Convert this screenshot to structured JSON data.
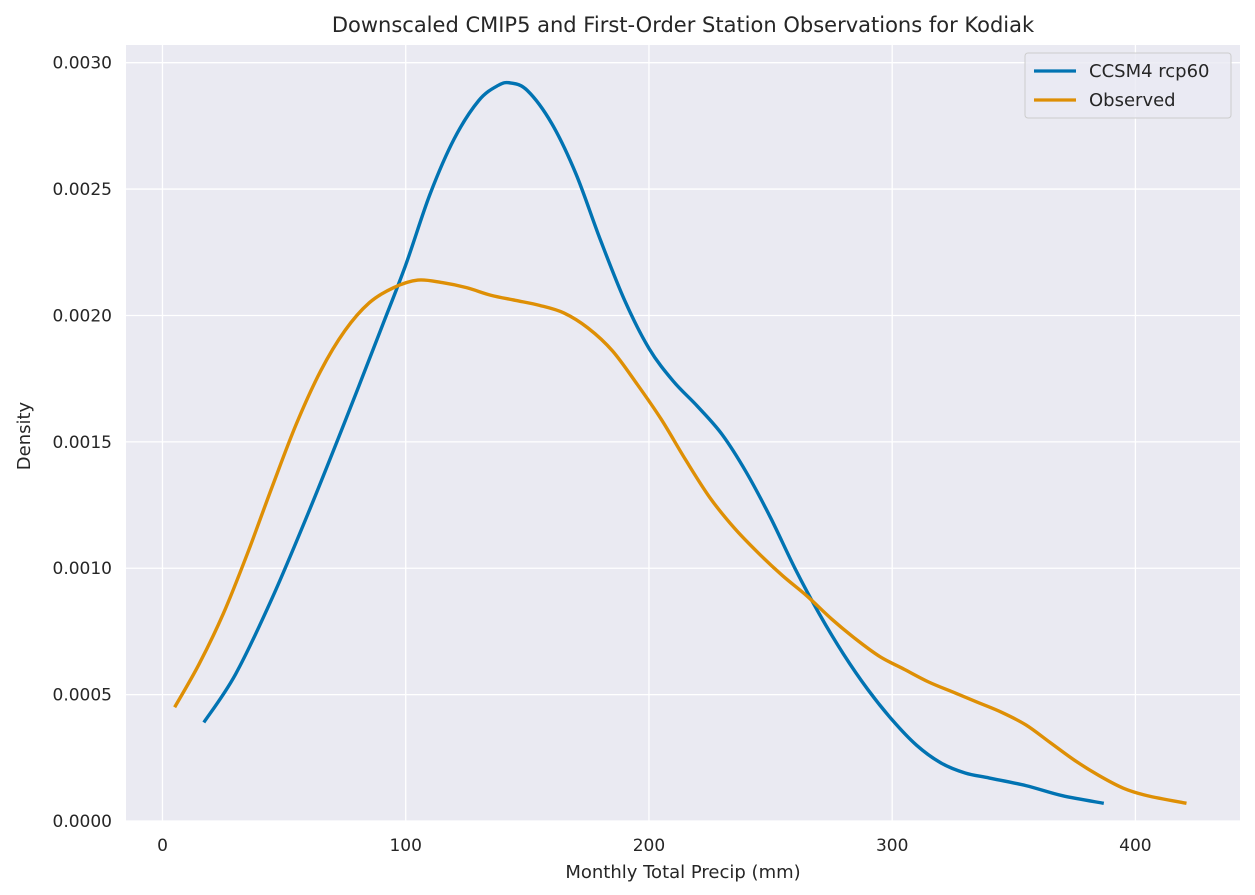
{
  "chart_data": {
    "type": "line",
    "title": "Downscaled CMIP5 and First-Order Station Observations for Kodiak",
    "xlabel": "Monthly Total Precip (mm)",
    "ylabel": "Density",
    "xlim": [
      -15,
      443
    ],
    "ylim": [
      0,
      0.00307
    ],
    "x_ticks": [
      0,
      100,
      200,
      300,
      400
    ],
    "x_tick_labels": [
      "0",
      "100",
      "200",
      "300",
      "400"
    ],
    "y_ticks": [
      0,
      0.0005,
      0.001,
      0.0015,
      0.002,
      0.0025,
      0.003
    ],
    "y_tick_labels": [
      "0.0000",
      "0.0005",
      "0.0010",
      "0.0015",
      "0.0020",
      "0.0025",
      "0.0030"
    ],
    "grid": true,
    "legend_position": "top-right",
    "colors": {
      "background": "#EAEAF2",
      "grid": "#FFFFFF",
      "ccsm4": "#0173B2",
      "observed": "#DE8F05"
    },
    "series": [
      {
        "name": "CCSM4 rcp60",
        "color": "#0173B2",
        "points": [
          [
            17,
            0.00039
          ],
          [
            30,
            0.00058
          ],
          [
            45,
            0.00088
          ],
          [
            60,
            0.00122
          ],
          [
            75,
            0.00158
          ],
          [
            90,
            0.00195
          ],
          [
            100,
            0.0022
          ],
          [
            110,
            0.00248
          ],
          [
            120,
            0.0027
          ],
          [
            130,
            0.00285
          ],
          [
            138,
            0.00291
          ],
          [
            143,
            0.00292
          ],
          [
            150,
            0.00289
          ],
          [
            160,
            0.00276
          ],
          [
            170,
            0.00256
          ],
          [
            180,
            0.0023
          ],
          [
            190,
            0.00206
          ],
          [
            200,
            0.00187
          ],
          [
            210,
            0.00174
          ],
          [
            220,
            0.00164
          ],
          [
            230,
            0.00153
          ],
          [
            240,
            0.00138
          ],
          [
            250,
            0.0012
          ],
          [
            260,
            0.001
          ],
          [
            270,
            0.00082
          ],
          [
            280,
            0.00066
          ],
          [
            290,
            0.00052
          ],
          [
            300,
            0.0004
          ],
          [
            310,
            0.0003
          ],
          [
            320,
            0.00023
          ],
          [
            330,
            0.00019
          ],
          [
            340,
            0.00017
          ],
          [
            355,
            0.00014
          ],
          [
            370,
            0.0001
          ],
          [
            387,
            7e-05
          ]
        ]
      },
      {
        "name": "Observed",
        "color": "#DE8F05",
        "points": [
          [
            5,
            0.00045
          ],
          [
            15,
            0.00062
          ],
          [
            25,
            0.00082
          ],
          [
            35,
            0.00106
          ],
          [
            45,
            0.00132
          ],
          [
            55,
            0.00157
          ],
          [
            65,
            0.00178
          ],
          [
            75,
            0.00194
          ],
          [
            85,
            0.00205
          ],
          [
            95,
            0.00211
          ],
          [
            105,
            0.00214
          ],
          [
            115,
            0.00213
          ],
          [
            125,
            0.00211
          ],
          [
            135,
            0.00208
          ],
          [
            145,
            0.00206
          ],
          [
            155,
            0.00204
          ],
          [
            165,
            0.00201
          ],
          [
            175,
            0.00195
          ],
          [
            185,
            0.00186
          ],
          [
            195,
            0.00173
          ],
          [
            205,
            0.00159
          ],
          [
            215,
            0.00143
          ],
          [
            225,
            0.00128
          ],
          [
            235,
            0.00116
          ],
          [
            245,
            0.00106
          ],
          [
            255,
            0.00097
          ],
          [
            265,
            0.00089
          ],
          [
            275,
            0.0008
          ],
          [
            285,
            0.00072
          ],
          [
            295,
            0.00065
          ],
          [
            305,
            0.0006
          ],
          [
            315,
            0.00055
          ],
          [
            325,
            0.00051
          ],
          [
            335,
            0.00047
          ],
          [
            345,
            0.00043
          ],
          [
            355,
            0.00038
          ],
          [
            365,
            0.00031
          ],
          [
            375,
            0.00024
          ],
          [
            385,
            0.00018
          ],
          [
            395,
            0.00013
          ],
          [
            405,
            0.0001
          ],
          [
            421,
            7e-05
          ]
        ]
      }
    ]
  }
}
